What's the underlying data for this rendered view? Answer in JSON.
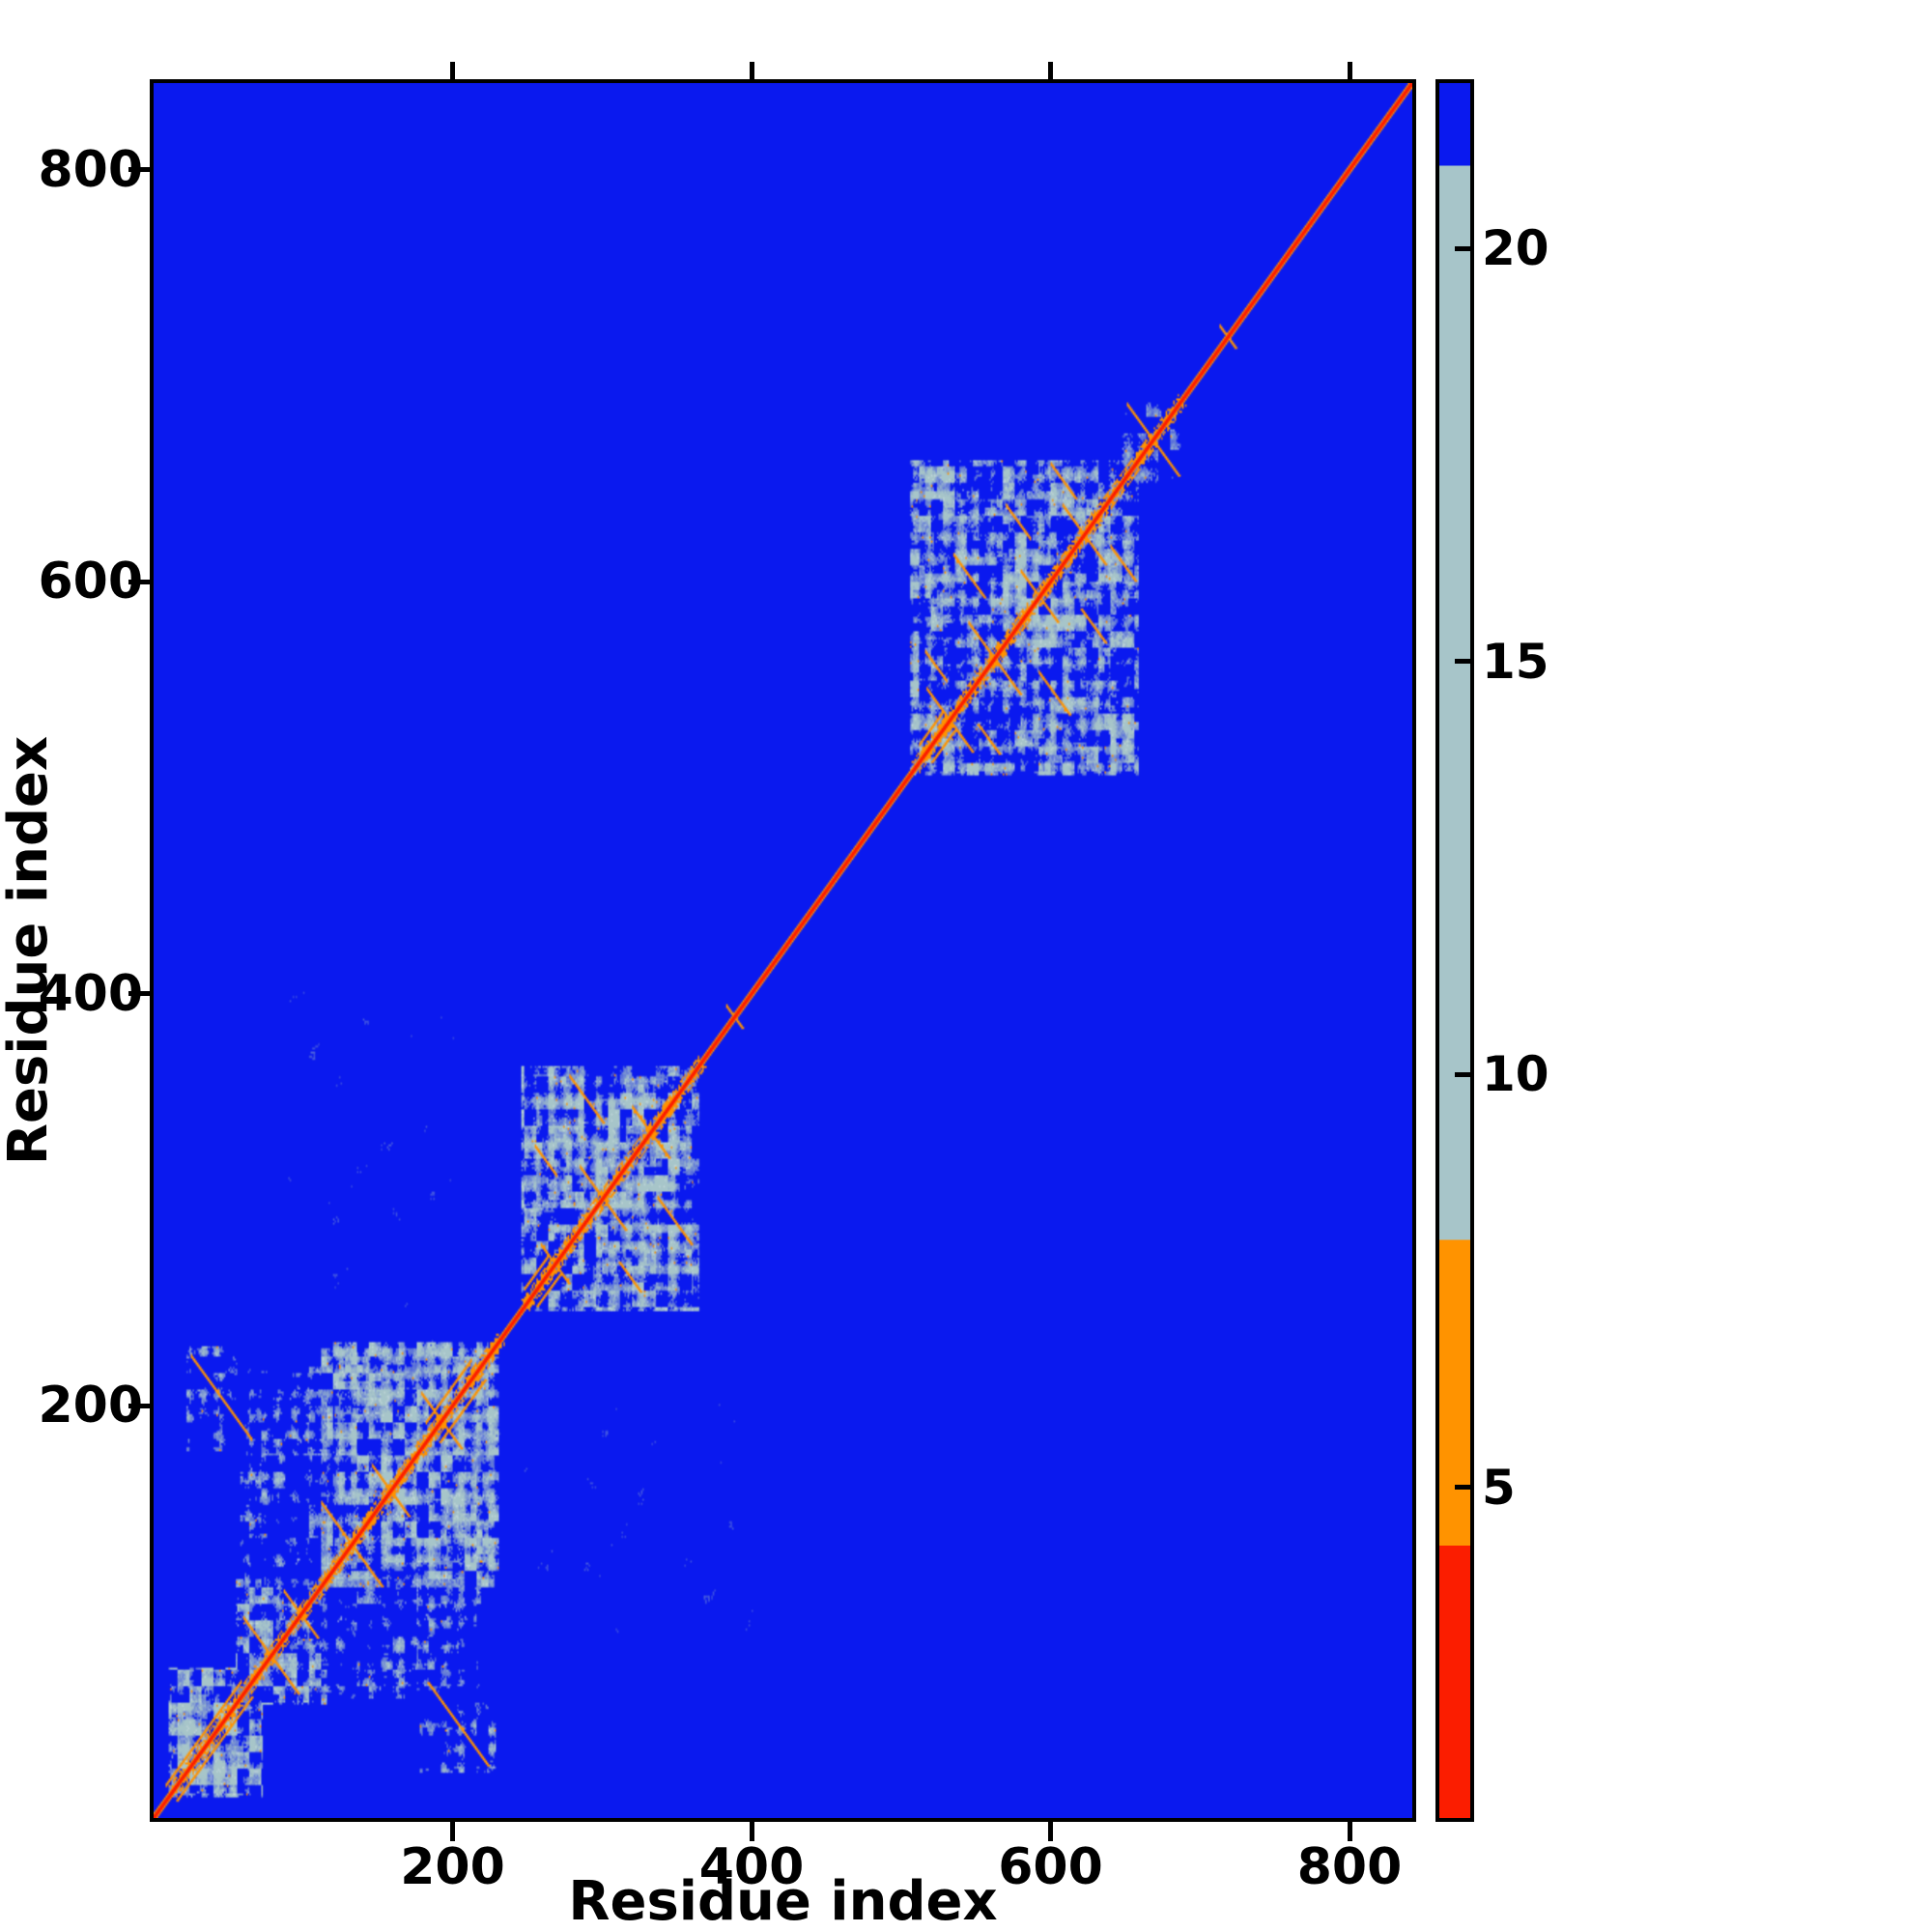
{
  "chart_data": {
    "type": "heatmap",
    "title": "",
    "xlabel": "Residue index",
    "ylabel": "Residue index",
    "x_range": [
      0,
      842
    ],
    "y_range": [
      0,
      842
    ],
    "x_ticks": [
      200,
      400,
      600,
      800
    ],
    "y_ticks": [
      200,
      400,
      600,
      800
    ],
    "grid": false,
    "legend": "colorbar-right",
    "colorbar": {
      "range": [
        1,
        22
      ],
      "ticks": [
        5,
        10,
        15,
        20
      ],
      "segments": [
        {
          "from": 21,
          "to": 22,
          "color": "#0a19ef"
        },
        {
          "from": 8,
          "to": 21,
          "color": "#a7c5c9"
        },
        {
          "from": 4.3,
          "to": 8,
          "color": "#ff9300"
        },
        {
          "from": 1,
          "to": 4.3,
          "color": "#fb1d00"
        }
      ]
    },
    "colors": {
      "background": "#0a19ef",
      "contact_mid": "#a7c5c9",
      "contact_near": "#ff9300",
      "contact_close": "#fb1d00"
    },
    "diagonal": {
      "present": true,
      "red_halfwidth": 1,
      "orange_halfwidth": 2
    },
    "clusters": [
      {
        "x0": 10,
        "x1": 72,
        "y0": 10,
        "y1": 72,
        "density": 0.62,
        "diag_band": true
      },
      {
        "x0": 55,
        "x1": 118,
        "y0": 55,
        "y1": 118,
        "density": 0.5,
        "diag_band": true
      },
      {
        "x0": 112,
        "x1": 230,
        "y0": 112,
        "y1": 230,
        "density": 0.58,
        "diag_band": true
      },
      {
        "x0": 58,
        "x1": 115,
        "y0": 122,
        "y1": 218,
        "density": 0.32,
        "diag_band": false
      },
      {
        "x0": 22,
        "x1": 72,
        "y0": 178,
        "y1": 228,
        "density": 0.3,
        "diag_band": false
      },
      {
        "x0": 246,
        "x1": 364,
        "y0": 246,
        "y1": 364,
        "density": 0.5,
        "diag_band": true
      },
      {
        "x0": 282,
        "x1": 348,
        "y0": 282,
        "y1": 348,
        "density": 0.6,
        "diag_band": true
      },
      {
        "x0": 506,
        "x1": 658,
        "y0": 506,
        "y1": 658,
        "density": 0.55,
        "diag_band": true
      },
      {
        "x0": 648,
        "x1": 686,
        "y0": 648,
        "y1": 686,
        "density": 0.35,
        "diag_band": true
      }
    ],
    "faint_regions": [
      {
        "x0": 88,
        "x1": 200,
        "y0": 256,
        "y1": 400,
        "density": 0.1
      },
      {
        "x0": 150,
        "x1": 210,
        "y0": 228,
        "y1": 258,
        "density": 0.08
      }
    ],
    "streaks": [
      {
        "x": 78,
        "y": 78,
        "len": 36
      },
      {
        "x": 98,
        "y": 98,
        "len": 22
      },
      {
        "x": 132,
        "y": 132,
        "len": 40
      },
      {
        "x": 158,
        "y": 158,
        "len": 24
      },
      {
        "x": 192,
        "y": 192,
        "len": 26
      },
      {
        "x": 45,
        "y": 203,
        "len": 40
      },
      {
        "x": 268,
        "y": 268,
        "len": 18
      },
      {
        "x": 300,
        "y": 300,
        "len": 30
      },
      {
        "x": 332,
        "y": 332,
        "len": 24
      },
      {
        "x": 289,
        "y": 348,
        "len": 22
      },
      {
        "x": 262,
        "y": 318,
        "len": 14
      },
      {
        "x": 388,
        "y": 388,
        "len": 10
      },
      {
        "x": 532,
        "y": 532,
        "len": 30
      },
      {
        "x": 562,
        "y": 562,
        "len": 34
      },
      {
        "x": 592,
        "y": 592,
        "len": 24
      },
      {
        "x": 622,
        "y": 622,
        "len": 28
      },
      {
        "x": 545,
        "y": 602,
        "len": 20
      },
      {
        "x": 578,
        "y": 628,
        "len": 16
      },
      {
        "x": 523,
        "y": 558,
        "len": 14
      },
      {
        "x": 608,
        "y": 648,
        "len": 16
      },
      {
        "x": 668,
        "y": 668,
        "len": 34
      },
      {
        "x": 718,
        "y": 718,
        "len": 10
      }
    ],
    "parallel_segments": [
      {
        "start": 8,
        "end": 58,
        "offset": 7
      },
      {
        "start": 182,
        "end": 212,
        "offset": 9
      },
      {
        "start": 248,
        "end": 264,
        "offset": 8
      },
      {
        "start": 512,
        "end": 528,
        "offset": 8
      }
    ]
  }
}
